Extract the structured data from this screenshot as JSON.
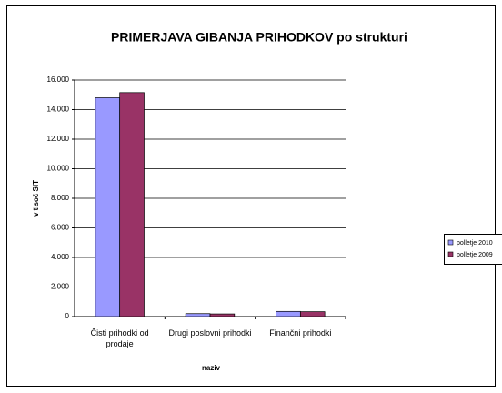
{
  "chart_data": {
    "type": "bar",
    "title": "PRIMERJAVA GIBANJA PRIHODKOV po strukturi",
    "x_label": "naziv",
    "y_label": "v tisoč SIT",
    "categories": [
      "Čisti prihodki od prodaje",
      "Drugi poslovni prihodki",
      "Finančni prihodki"
    ],
    "series": [
      {
        "name": "polletje 2010",
        "color": "#9999ff",
        "values": [
          14800,
          200,
          350
        ]
      },
      {
        "name": "polletje 2009",
        "color": "#993366",
        "values": [
          15150,
          180,
          330
        ]
      }
    ],
    "ylim": [
      0,
      16000
    ],
    "yticks": [
      0,
      {
        "value": 2000,
        "label": "2.000"
      },
      {
        "value": 4000,
        "label": "4.000"
      },
      {
        "value": 6000,
        "label": "6.000"
      },
      {
        "value": 8000,
        "label": "8.000"
      },
      {
        "value": 10000,
        "label": "10.000"
      },
      {
        "value": 12000,
        "label": "12.000"
      },
      {
        "value": 14000,
        "label": "14.000"
      },
      {
        "value": 16000,
        "label": "16.000"
      }
    ],
    "grid": true,
    "legend": "right"
  }
}
